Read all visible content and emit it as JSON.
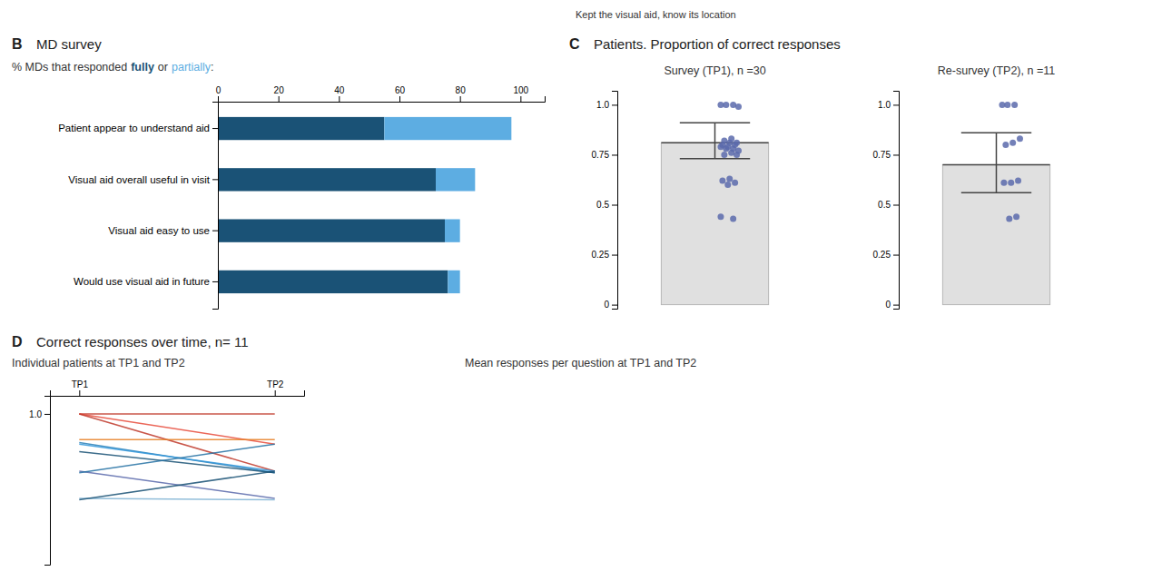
{
  "chart_data": [
    {
      "type": "bar",
      "title": "MD survey",
      "subtitle": "% MDs that responded",
      "annotations": [
        "B",
        "or",
        ":",
        "Kept the visual aid, know its location"
      ],
      "orientation": "horizontal",
      "stacked": true,
      "legend": "top",
      "grid": false,
      "categories": [
        "Patient appear to understand aid",
        "Visual aid overall useful in visit",
        "Visual aid easy to use",
        "Would use visual aid in future"
      ],
      "series": [
        {
          "name": "fully",
          "color": "#1a5276",
          "values": [
            55,
            72,
            75,
            76
          ]
        },
        {
          "name": "partially",
          "color": "#5dade2",
          "values": [
            42,
            13,
            5,
            4
          ]
        }
      ],
      "xlim": [
        0,
        108
      ],
      "xticks": [
        0,
        20,
        40,
        60,
        80,
        100
      ]
    },
    {
      "type": "bar",
      "title": "Patients. Proportion of correct responses",
      "subtitle": "Survey (TP1), n =30",
      "annotations": [
        "C"
      ],
      "grid": false,
      "tick_labels": "y",
      "series": [
        {
          "type": "bar",
          "color": "#e0e0e0",
          "values": [
            0.81
          ],
          "ci_lower": [
            0.73
          ],
          "ci_upper": [
            0.91
          ]
        },
        {
          "type": "scatter",
          "color": "#5b6aab",
          "values": [
            1.0,
            1.0,
            1.0,
            0.99,
            0.83,
            0.82,
            0.81,
            0.81,
            0.8,
            0.8,
            0.79,
            0.79,
            0.78,
            0.78,
            0.77,
            0.76,
            0.75,
            0.75,
            0.63,
            0.62,
            0.61,
            0.6,
            0.44,
            0.43
          ]
        }
      ],
      "ylim": [
        -0.02,
        1.07
      ],
      "yticks": [
        0,
        0.25,
        0.5,
        0.75,
        {
          "value": 1.0,
          "label": "1.0"
        }
      ]
    },
    {
      "type": "bar",
      "subtitle": "Re-survey (TP2), n =11",
      "grid": false,
      "tick_labels": "y",
      "series": [
        {
          "type": "bar",
          "color": "#e0e0e0",
          "values": [
            0.7
          ],
          "ci_lower": [
            0.56
          ],
          "ci_upper": [
            0.86
          ]
        },
        {
          "type": "scatter",
          "color": "#5b6aab",
          "values": [
            1.0,
            1.0,
            1.0,
            0.83,
            0.81,
            0.8,
            0.62,
            0.61,
            0.61,
            0.44,
            0.43
          ]
        }
      ],
      "ylim": [
        -0.02,
        1.07
      ],
      "yticks": [
        0,
        0.25,
        0.5,
        0.75,
        {
          "value": 1.0,
          "label": "1.0"
        }
      ]
    },
    {
      "type": "line",
      "title": "Correct responses over time, n= 11",
      "subtitle": "Individual patients at TP1 and TP2",
      "annotations": [
        "D",
        "Mean responses per question at TP1 and TP2"
      ],
      "grid": false,
      "categories": [
        "TP1",
        "TP2"
      ],
      "series": [
        {
          "color": "#c0392b",
          "values": [
            1.0,
            1.0
          ]
        },
        {
          "color": "#e74c3c",
          "values": [
            1.0,
            0.8
          ]
        },
        {
          "color": "#c0392b",
          "values": [
            1.0,
            0.62
          ]
        },
        {
          "color": "#e67e22",
          "values": [
            0.83,
            0.83
          ]
        },
        {
          "color": "#2980b9",
          "values": [
            0.81,
            0.61
          ]
        },
        {
          "color": "#3498db",
          "values": [
            0.8,
            0.62
          ]
        },
        {
          "color": "#1a5276",
          "values": [
            0.75,
            0.61
          ]
        },
        {
          "color": "#5b6aab",
          "values": [
            0.62,
            0.44
          ]
        },
        {
          "color": "#2471a3",
          "values": [
            0.61,
            0.8
          ]
        },
        {
          "color": "#7fb3d3",
          "values": [
            0.44,
            0.43
          ]
        },
        {
          "color": "#1a5276",
          "values": [
            0.43,
            0.62
          ]
        }
      ],
      "ylim": [
        0,
        1.12
      ],
      "yticks": [
        {
          "value": 1.0,
          "label": "1.0"
        }
      ]
    }
  ]
}
